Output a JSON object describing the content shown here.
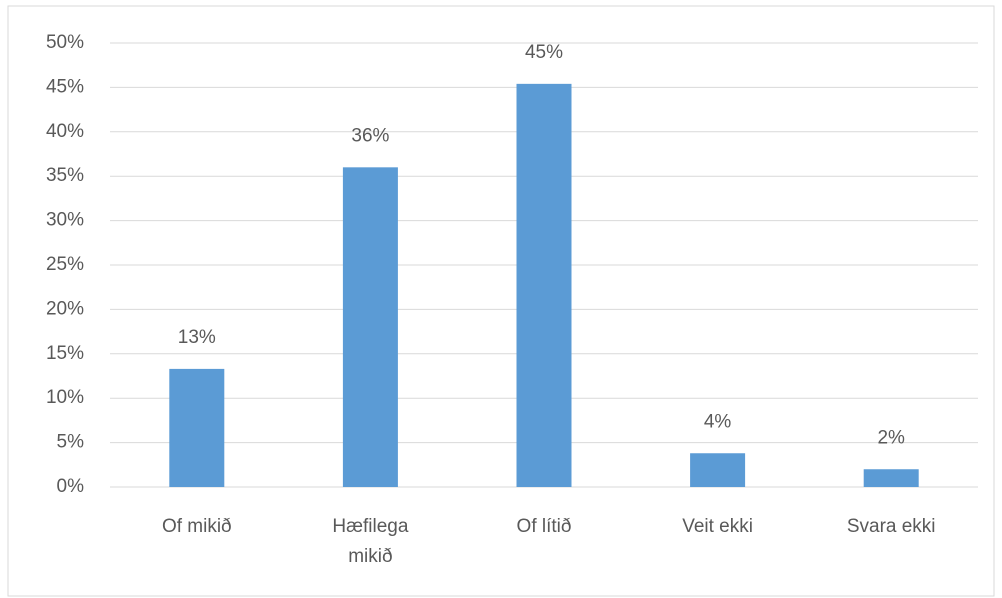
{
  "chart_data": {
    "type": "bar",
    "categories": [
      "Of mikið",
      "Hæfilega mikið",
      "Of lítið",
      "Veit ekki",
      "Svara ekki"
    ],
    "values": [
      13.3,
      36,
      45.4,
      3.8,
      2.0
    ],
    "value_labels": [
      "13%",
      "36%",
      "45%",
      "4%",
      "2%"
    ],
    "color": "#5b9bd5",
    "ylim": [
      0,
      50
    ],
    "yticks": [
      {
        "value": 0,
        "label": "0%"
      },
      {
        "value": 5,
        "label": "5%"
      },
      {
        "value": 10,
        "label": "10%"
      },
      {
        "value": 15,
        "label": "15%"
      },
      {
        "value": 20,
        "label": "20%"
      },
      {
        "value": 25,
        "label": "25%"
      },
      {
        "value": 30,
        "label": "30%"
      },
      {
        "value": 35,
        "label": "35%"
      },
      {
        "value": 40,
        "label": "40%"
      },
      {
        "value": 45,
        "label": "45%"
      },
      {
        "value": 50,
        "label": "50%"
      }
    ],
    "grid": true
  }
}
